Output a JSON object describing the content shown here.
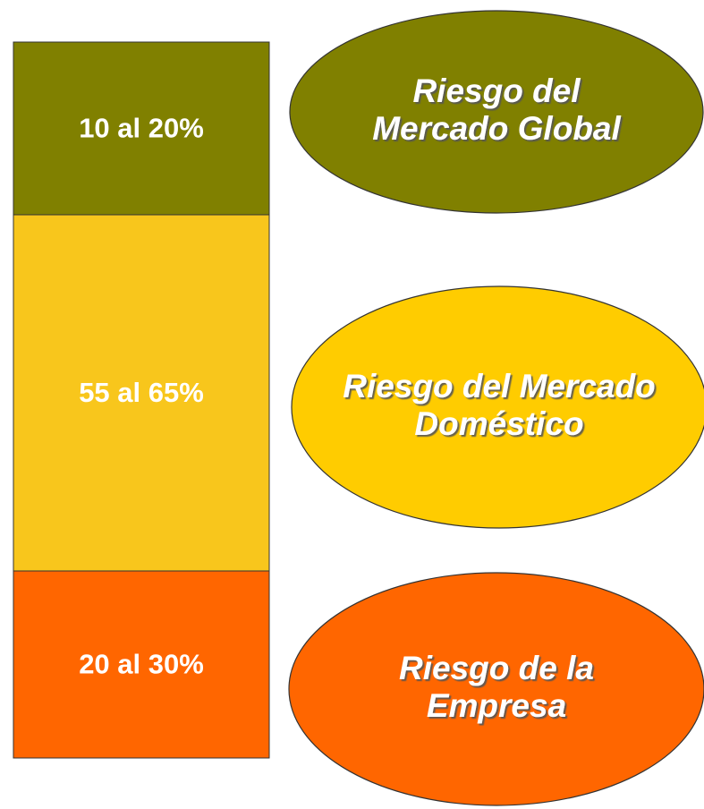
{
  "segments": [
    {
      "label": "10 al 20%"
    },
    {
      "label": "55 al 65%"
    },
    {
      "label": "20 al 30%"
    }
  ],
  "ellipses": [
    {
      "lines": [
        "Riesgo del",
        "Mercado Global"
      ]
    },
    {
      "lines": [
        "Riesgo del Mercado",
        "Doméstico"
      ]
    },
    {
      "lines": [
        "Riesgo de la",
        "Empresa"
      ]
    }
  ]
}
